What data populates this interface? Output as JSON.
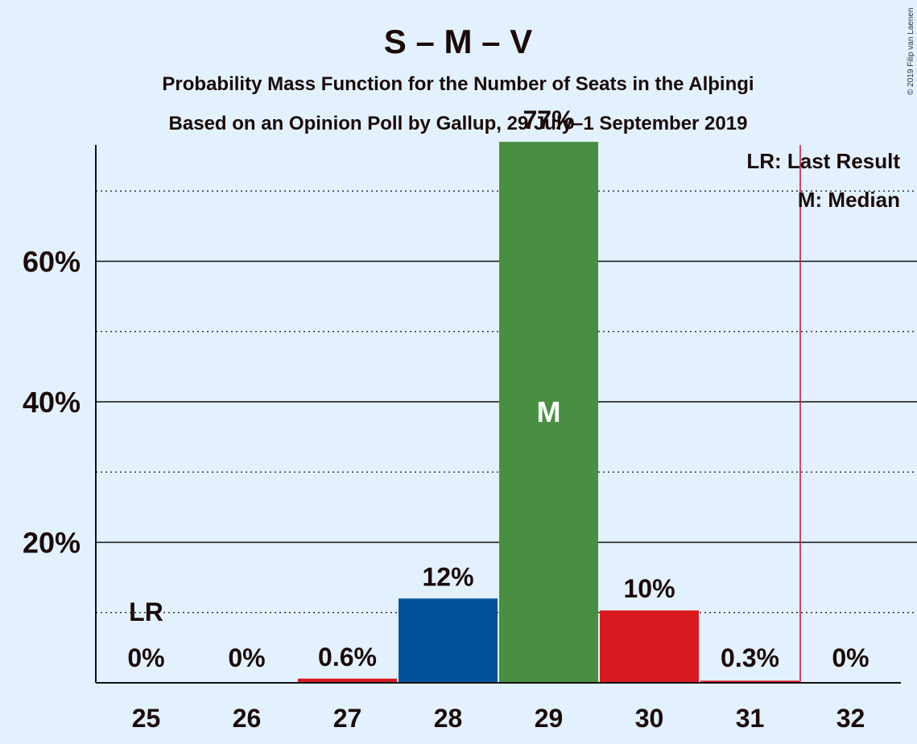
{
  "chart_data": {
    "type": "bar",
    "title": "S – M – V",
    "subtitle_lines": [
      "Probability Mass Function for the Number of Seats in the Alþingi",
      "Based on an Opinion Poll by Gallup, 29 July–1 September 2019"
    ],
    "copyright": "© 2019 Filip van Laenen",
    "categories": [
      "25",
      "26",
      "27",
      "28",
      "29",
      "30",
      "31",
      "32"
    ],
    "values": [
      0,
      0,
      0.6,
      12,
      77,
      10.3,
      0.3,
      0
    ],
    "value_labels": [
      "0%",
      "0%",
      "0.6%",
      "12%",
      "77%",
      "10%",
      "0.3%",
      "0%"
    ],
    "bar_colors": [
      "#d71920",
      "#d71920",
      "#d71920",
      "#00529b",
      "#488f42",
      "#d71920",
      "#d71920",
      "#d71920"
    ],
    "ylim": [
      0,
      80
    ],
    "y_ticks": [
      {
        "value": 20,
        "label": "20%"
      },
      {
        "value": 40,
        "label": "40%"
      },
      {
        "value": 60,
        "label": "60%"
      }
    ],
    "major_grid": [
      20,
      40,
      60
    ],
    "minor_grid": [
      10,
      30,
      50,
      70
    ],
    "last_result": {
      "after_category": "31",
      "label": "LR",
      "label_at_category": "25",
      "line_color": "#c8103e"
    },
    "median": {
      "category": "29",
      "label": "M"
    },
    "legend": {
      "position": "top-right",
      "lines": [
        "LR: Last Result",
        "M: Median"
      ]
    },
    "xlabel": "",
    "ylabel": ""
  }
}
